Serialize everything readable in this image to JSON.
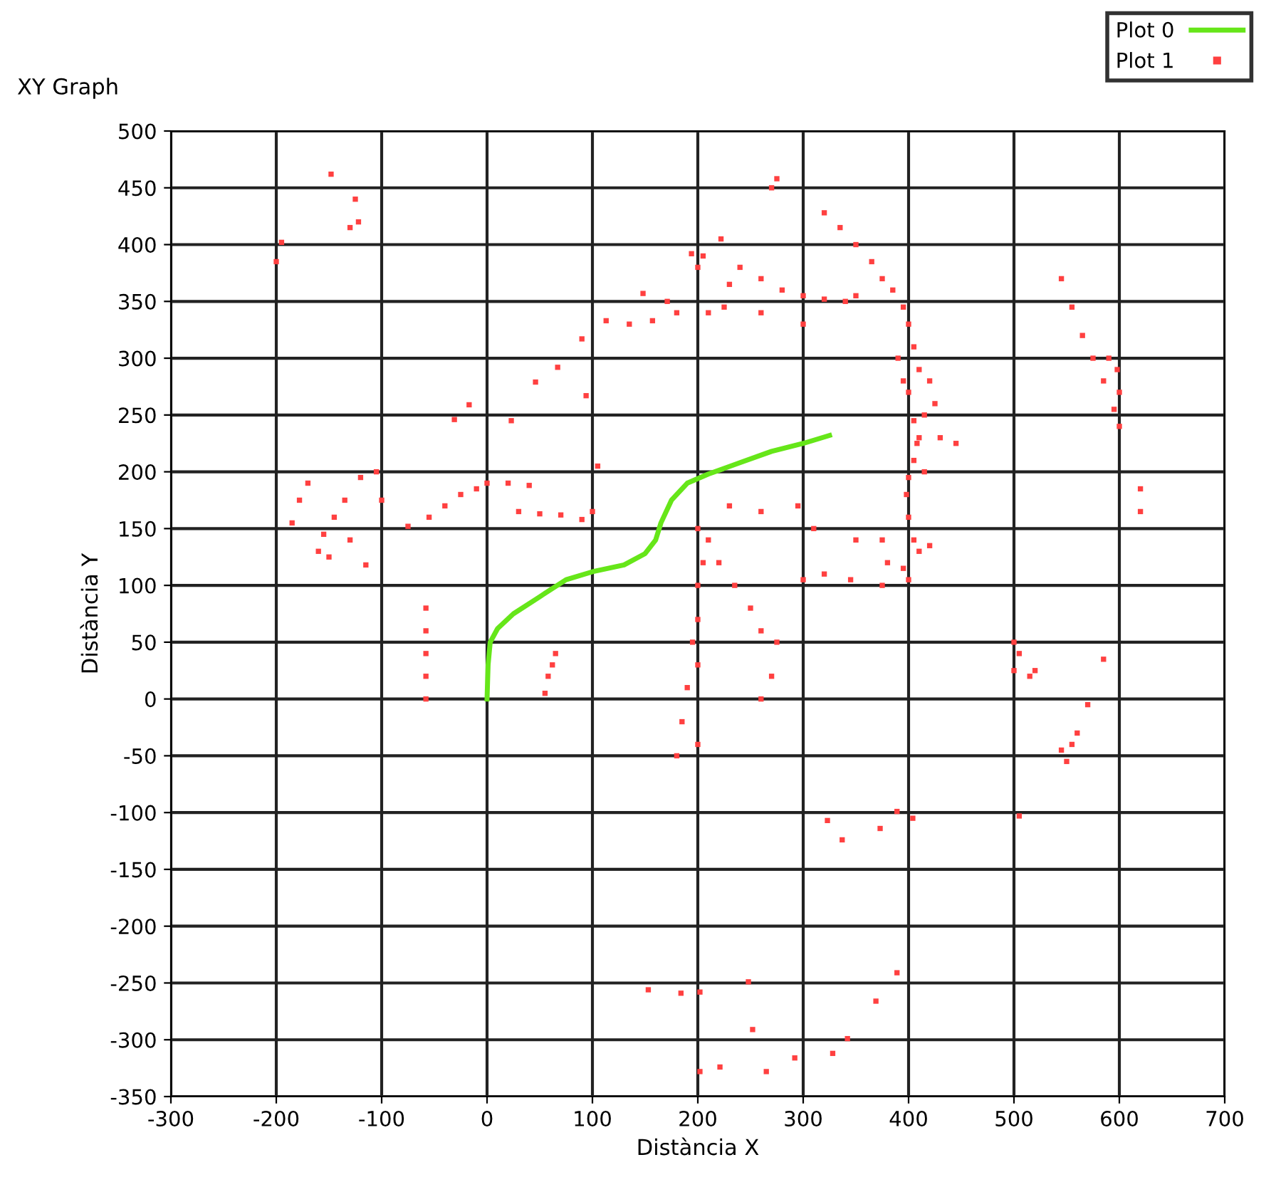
{
  "chart_data": {
    "type": "scatter",
    "title": "XY Graph",
    "xlabel": "Distància X",
    "ylabel": "Distància Y",
    "xlim": [
      -300,
      700
    ],
    "xticks": [
      -300,
      -200,
      -100,
      0,
      100,
      200,
      300,
      400,
      500,
      600,
      700
    ],
    "ylim": [
      -350,
      500
    ],
    "yticks": [
      -350,
      -300,
      -250,
      -200,
      -150,
      -100,
      -50,
      0,
      50,
      100,
      150,
      200,
      250,
      300,
      350,
      400,
      450,
      500
    ],
    "grid": true,
    "legend": "top right",
    "series": [
      {
        "name": "Plot 0",
        "type": "line",
        "color": "#66e619",
        "marker": "none",
        "line_style": "solid",
        "x": [
          0,
          1,
          3,
          10,
          25,
          50,
          75,
          100,
          130,
          150,
          160,
          165,
          175,
          190,
          210,
          240,
          270,
          300,
          325
        ],
        "values": [
          0,
          30,
          50,
          62,
          75,
          90,
          105,
          112,
          118,
          128,
          140,
          155,
          175,
          190,
          198,
          208,
          218,
          225,
          232
        ]
      },
      {
        "name": "Plot 1",
        "color": "#ff4040",
        "marker": "square",
        "x": [
          -148,
          -125,
          -122,
          -130,
          -195,
          -200,
          -185,
          -178,
          -170,
          -160,
          -155,
          -145,
          -135,
          -120,
          -105,
          -150,
          -115,
          -130,
          -100,
          -75,
          -55,
          -40,
          -25,
          -10,
          0,
          20,
          40,
          30,
          50,
          70,
          90,
          100,
          105,
          -31,
          -17,
          23,
          46,
          67,
          90,
          94,
          113,
          135,
          157,
          171,
          194,
          148,
          -58,
          -58,
          -58,
          -58,
          -58,
          55,
          58,
          62,
          65,
          275,
          270,
          222,
          205,
          200,
          240,
          260,
          230,
          280,
          300,
          320,
          340,
          350,
          260,
          225,
          210,
          180,
          300,
          320,
          335,
          350,
          365,
          375,
          385,
          395,
          400,
          405,
          410,
          420,
          425,
          415,
          410,
          405,
          400,
          398,
          400,
          405,
          410,
          420,
          395,
          400,
          390,
          395,
          400,
          405,
          408,
          415,
          430,
          445,
          545,
          555,
          565,
          575,
          585,
          590,
          598,
          600,
          595,
          600,
          620,
          620,
          200,
          205,
          200,
          200,
          195,
          200,
          190,
          185,
          180,
          200,
          210,
          220,
          235,
          250,
          260,
          275,
          270,
          260,
          230,
          260,
          295,
          310,
          350,
          375,
          380,
          375,
          320,
          345,
          300,
          500,
          505,
          500,
          515,
          520,
          585,
          570,
          560,
          555,
          550,
          545,
          248,
          202,
          252,
          265,
          292,
          328,
          342,
          369,
          389,
          202,
          221,
          153,
          184,
          323,
          337,
          373,
          404,
          389,
          505
        ],
        "values": [
          462,
          440,
          420,
          415,
          402,
          385,
          155,
          175,
          190,
          130,
          145,
          160,
          175,
          195,
          200,
          125,
          118,
          140,
          175,
          152,
          160,
          170,
          180,
          185,
          190,
          190,
          188,
          165,
          163,
          162,
          158,
          165,
          205,
          246,
          259,
          245,
          279,
          292,
          317,
          267,
          333,
          330,
          333,
          350,
          392,
          357,
          0,
          20,
          40,
          60,
          80,
          5,
          20,
          30,
          40,
          458,
          450,
          405,
          390,
          380,
          380,
          370,
          365,
          360,
          355,
          352,
          350,
          355,
          340,
          345,
          340,
          340,
          330,
          428,
          415,
          400,
          385,
          370,
          360,
          345,
          330,
          310,
          290,
          280,
          260,
          250,
          230,
          210,
          195,
          180,
          160,
          140,
          130,
          135,
          115,
          105,
          300,
          280,
          270,
          245,
          225,
          200,
          230,
          225,
          370,
          345,
          320,
          300,
          280,
          300,
          290,
          270,
          255,
          240,
          185,
          165,
          150,
          120,
          100,
          70,
          50,
          30,
          10,
          -20,
          -50,
          -40,
          140,
          120,
          100,
          80,
          60,
          50,
          20,
          0,
          170,
          165,
          170,
          150,
          140,
          140,
          120,
          100,
          110,
          105,
          105,
          50,
          40,
          25,
          20,
          25,
          35,
          -5,
          -30,
          -40,
          -55,
          -45,
          -249,
          -258,
          -291,
          -328,
          -316,
          -312,
          -299,
          -266,
          -241,
          -328,
          -324,
          -256,
          -259,
          -107,
          -124,
          -114,
          -105,
          -99,
          -103
        ]
      }
    ]
  }
}
